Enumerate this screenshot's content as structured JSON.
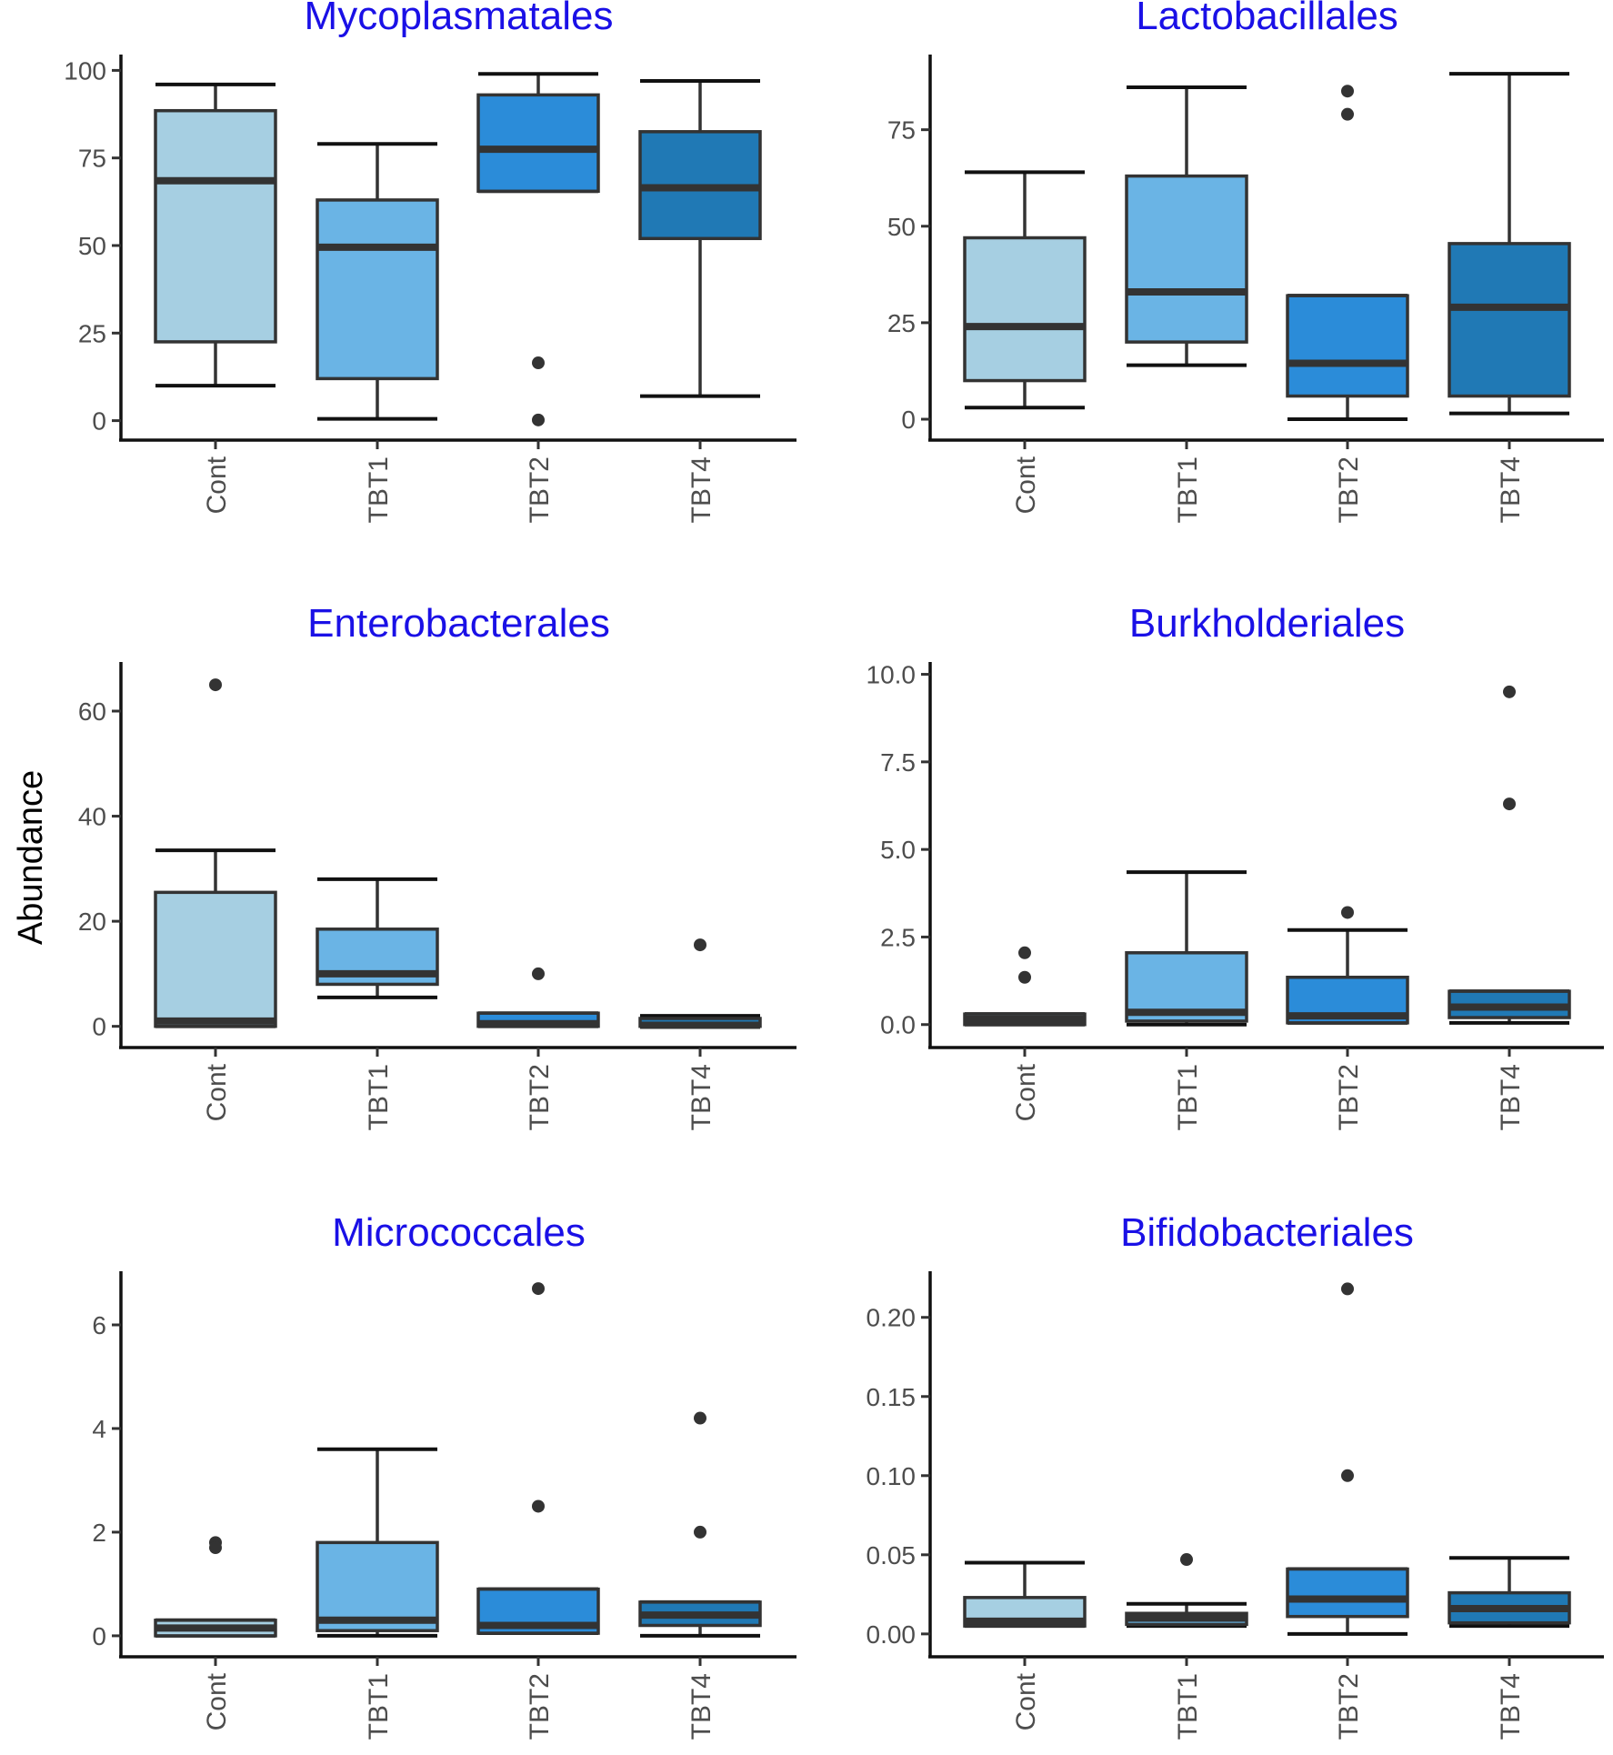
{
  "figure": {
    "y_axis_title": "Abundance",
    "group_colors": {
      "Cont": "#a6cfe2",
      "TBT1": "#6ab4e5",
      "TBT2": "#2b8cd9",
      "TBT4": "#2079b5"
    }
  },
  "chart_data": [
    {
      "type": "boxplot",
      "title": "Mycoplasmatales",
      "categories": [
        "Cont",
        "TBT1",
        "TBT2",
        "TBT4"
      ],
      "ylim": [
        -4,
        104
      ],
      "yticks": [
        0,
        25,
        50,
        75,
        100
      ],
      "ytick_labels": [
        "0",
        "25",
        "50",
        "75",
        "100"
      ],
      "boxes": [
        {
          "group": "Cont",
          "whisker_low": 10,
          "q1": 22.5,
          "median": 68.5,
          "q3": 88.5,
          "whisker_high": 96,
          "outliers": []
        },
        {
          "group": "TBT1",
          "whisker_low": 0.5,
          "q1": 12,
          "median": 49.5,
          "q3": 63,
          "whisker_high": 79,
          "outliers": []
        },
        {
          "group": "TBT2",
          "whisker_low": 65.5,
          "q1": 65.5,
          "median": 77.5,
          "q3": 93,
          "whisker_high": 99,
          "outliers": [
            16.5,
            0.2
          ]
        },
        {
          "group": "TBT4",
          "whisker_low": 7,
          "q1": 52,
          "median": 66.5,
          "q3": 82.5,
          "whisker_high": 97,
          "outliers": []
        }
      ]
    },
    {
      "type": "boxplot",
      "title": "Lactobacillales",
      "categories": [
        "Cont",
        "TBT1",
        "TBT2",
        "TBT4"
      ],
      "ylim": [
        -4,
        94
      ],
      "yticks": [
        0,
        25,
        50,
        75
      ],
      "ytick_labels": [
        "0",
        "25",
        "50",
        "75"
      ],
      "boxes": [
        {
          "group": "Cont",
          "whisker_low": 3,
          "q1": 10,
          "median": 24,
          "q3": 47,
          "whisker_high": 64,
          "outliers": []
        },
        {
          "group": "TBT1",
          "whisker_low": 14,
          "q1": 20,
          "median": 33,
          "q3": 63,
          "whisker_high": 86,
          "outliers": []
        },
        {
          "group": "TBT2",
          "whisker_low": 0,
          "q1": 6,
          "median": 14.5,
          "q3": 32,
          "whisker_high": 32,
          "outliers": [
            85,
            79
          ]
        },
        {
          "group": "TBT4",
          "whisker_low": 1.5,
          "q1": 6,
          "median": 29,
          "q3": 45.5,
          "whisker_high": 89.5,
          "outliers": []
        }
      ]
    },
    {
      "type": "boxplot",
      "title": "Enterobacterales",
      "categories": [
        "Cont",
        "TBT1",
        "TBT2",
        "TBT4"
      ],
      "ylim": [
        -3,
        69
      ],
      "yticks": [
        0,
        20,
        40,
        60
      ],
      "ytick_labels": [
        "0",
        "20",
        "40",
        "60"
      ],
      "boxes": [
        {
          "group": "Cont",
          "whisker_low": 0,
          "q1": 0,
          "median": 1,
          "q3": 25.5,
          "whisker_high": 33.5,
          "outliers": [
            65
          ]
        },
        {
          "group": "TBT1",
          "whisker_low": 5.5,
          "q1": 8,
          "median": 10,
          "q3": 18.5,
          "whisker_high": 28,
          "outliers": []
        },
        {
          "group": "TBT2",
          "whisker_low": 0,
          "q1": 0,
          "median": 0.5,
          "q3": 2.5,
          "whisker_high": 2.5,
          "outliers": [
            10
          ]
        },
        {
          "group": "TBT4",
          "whisker_low": 0,
          "q1": 0,
          "median": 0.2,
          "q3": 1.5,
          "whisker_high": 2,
          "outliers": [
            15.5
          ]
        }
      ]
    },
    {
      "type": "boxplot",
      "title": "Burkholderiales",
      "categories": [
        "Cont",
        "TBT1",
        "TBT2",
        "TBT4"
      ],
      "ylim": [
        -0.5,
        10.3
      ],
      "yticks": [
        0,
        2.5,
        5,
        7.5,
        10
      ],
      "ytick_labels": [
        "0.0",
        "2.5",
        "5.0",
        "7.5",
        "10.0"
      ],
      "boxes": [
        {
          "group": "Cont",
          "whisker_low": 0,
          "q1": 0,
          "median": 0.15,
          "q3": 0.3,
          "whisker_high": 0.3,
          "outliers": [
            2.05,
            1.35
          ]
        },
        {
          "group": "TBT1",
          "whisker_low": 0,
          "q1": 0.1,
          "median": 0.35,
          "q3": 2.05,
          "whisker_high": 4.35,
          "outliers": []
        },
        {
          "group": "TBT2",
          "whisker_low": 0.05,
          "q1": 0.05,
          "median": 0.25,
          "q3": 1.35,
          "whisker_high": 2.7,
          "outliers": [
            3.2
          ]
        },
        {
          "group": "TBT4",
          "whisker_low": 0.05,
          "q1": 0.2,
          "median": 0.5,
          "q3": 0.95,
          "whisker_high": 0.95,
          "outliers": [
            9.5,
            6.3
          ]
        }
      ]
    },
    {
      "type": "boxplot",
      "title": "Micrococcales",
      "categories": [
        "Cont",
        "TBT1",
        "TBT2",
        "TBT4"
      ],
      "ylim": [
        -0.3,
        7.0
      ],
      "yticks": [
        0,
        2,
        4,
        6
      ],
      "ytick_labels": [
        "0",
        "2",
        "4",
        "6"
      ],
      "boxes": [
        {
          "group": "Cont",
          "whisker_low": 0,
          "q1": 0,
          "median": 0.15,
          "q3": 0.3,
          "whisker_high": 0.3,
          "outliers": [
            1.8,
            1.7
          ]
        },
        {
          "group": "TBT1",
          "whisker_low": 0,
          "q1": 0.1,
          "median": 0.3,
          "q3": 1.8,
          "whisker_high": 3.6,
          "outliers": []
        },
        {
          "group": "TBT2",
          "whisker_low": 0.05,
          "q1": 0.05,
          "median": 0.2,
          "q3": 0.9,
          "whisker_high": 0.9,
          "outliers": [
            6.7,
            2.5
          ]
        },
        {
          "group": "TBT4",
          "whisker_low": 0,
          "q1": 0.2,
          "median": 0.4,
          "q3": 0.65,
          "whisker_high": 0.65,
          "outliers": [
            4.2,
            2.0
          ]
        }
      ]
    },
    {
      "type": "boxplot",
      "title": "Bifidobacteriales",
      "categories": [
        "Cont",
        "TBT1",
        "TBT2",
        "TBT4"
      ],
      "ylim": [
        -0.011,
        0.228
      ],
      "yticks": [
        0,
        0.05,
        0.1,
        0.15,
        0.2
      ],
      "ytick_labels": [
        "0.00",
        "0.05",
        "0.10",
        "0.15",
        "0.20"
      ],
      "boxes": [
        {
          "group": "Cont",
          "whisker_low": 0.005,
          "q1": 0.005,
          "median": 0.008,
          "q3": 0.023,
          "whisker_high": 0.045,
          "outliers": []
        },
        {
          "group": "TBT1",
          "whisker_low": 0.005,
          "q1": 0.006,
          "median": 0.01,
          "q3": 0.013,
          "whisker_high": 0.019,
          "outliers": [
            0.047
          ]
        },
        {
          "group": "TBT2",
          "whisker_low": 0,
          "q1": 0.011,
          "median": 0.022,
          "q3": 0.041,
          "whisker_high": 0.041,
          "outliers": [
            0.218,
            0.1
          ]
        },
        {
          "group": "TBT4",
          "whisker_low": 0.005,
          "q1": 0.007,
          "median": 0.016,
          "q3": 0.026,
          "whisker_high": 0.048,
          "outliers": []
        }
      ]
    }
  ]
}
